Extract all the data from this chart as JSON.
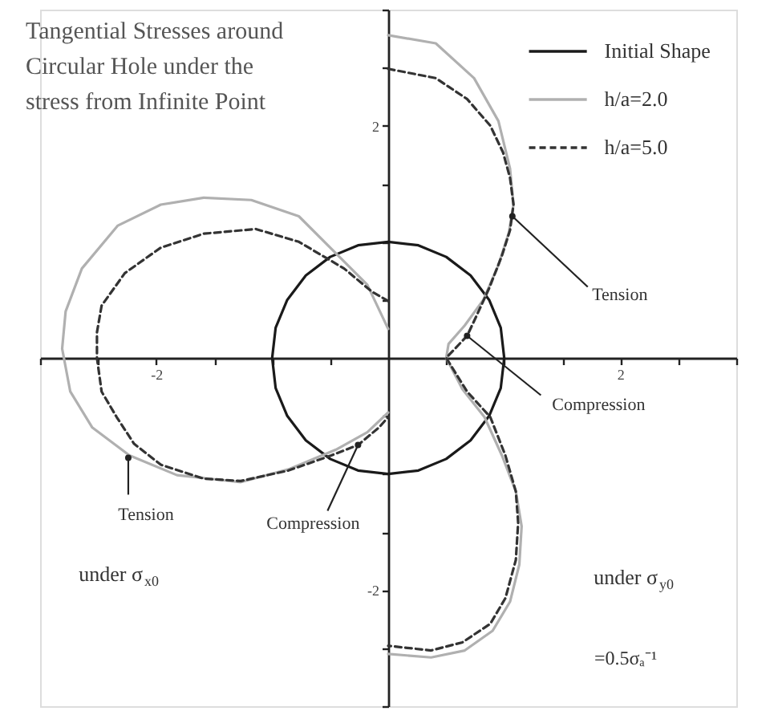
{
  "chart_data": {
    "type": "line",
    "title": "Tangential Stresses around Circular Hole under the stress from Infinite Point",
    "xlim": [
      -3,
      3
    ],
    "ylim": [
      -3,
      3
    ],
    "xticks": [
      {
        "value": -3,
        "label": null
      },
      {
        "value": -2.5,
        "label": null
      },
      -2,
      {
        "value": -1.5,
        "label": null
      },
      {
        "value": -1,
        "label": null
      },
      {
        "value": -0.5,
        "label": null
      },
      {
        "value": 0.5,
        "label": null
      },
      {
        "value": 1,
        "label": null
      },
      {
        "value": 1.5,
        "label": null
      },
      2,
      {
        "value": 2.5,
        "label": null
      },
      {
        "value": 3,
        "label": null
      }
    ],
    "yticks": [
      {
        "value": -3,
        "label": null
      },
      {
        "value": -2.5,
        "label": null
      },
      -2,
      {
        "value": -1.5,
        "label": null
      },
      {
        "value": -1,
        "label": null
      },
      {
        "value": -0.5,
        "label": null
      },
      {
        "value": 0.5,
        "label": null
      },
      {
        "value": 1,
        "label": null
      },
      {
        "value": 1.5,
        "label": null
      },
      2,
      {
        "value": 2.5,
        "label": null
      },
      {
        "value": 3,
        "label": null
      }
    ],
    "legend": "top right",
    "series": [
      {
        "name": "Initial Shape",
        "color": "#1a1a1a",
        "line_style": "solid",
        "x": [
          1,
          0.97,
          0.87,
          0.71,
          0.5,
          0.26,
          0,
          -0.26,
          -0.5,
          -0.71,
          -0.87,
          -0.97,
          -1,
          -0.97,
          -0.87,
          -0.71,
          -0.5,
          -0.26,
          0,
          0.26,
          0.5,
          0.71,
          0.87,
          0.97,
          1,
          0.97
        ],
        "values": [
          0,
          0.26,
          0.5,
          0.71,
          0.87,
          0.97,
          1,
          0.97,
          0.87,
          0.71,
          0.5,
          0.26,
          0,
          -0.26,
          -0.5,
          -0.71,
          -0.87,
          -0.97,
          -1,
          -0.97,
          -0.87,
          -0.71,
          -0.5,
          -0.26,
          0,
          0.26
        ]
      },
      {
        "name": "h/a=2.0",
        "color": "#b0b0b0",
        "line_style": "solid",
        "x": [
          0,
          0.41,
          0.74,
          0.95,
          1.05,
          1.08,
          1.04,
          0.95,
          0.82,
          0.66,
          0.52,
          0.5,
          0.64,
          0.83,
          0.98,
          1.1,
          1.15,
          1.13,
          1.05,
          0.9,
          0.66,
          0.37,
          0,
          null,
          0,
          -0.18,
          -0.47,
          -0.77,
          -1.18,
          -1.59,
          -1.96,
          -2.33,
          -2.64,
          -2.78,
          -2.81,
          -2.74,
          -2.55,
          -2.23,
          -1.82,
          -1.27,
          -0.86,
          -0.45,
          -0.18,
          0
        ],
        "values": [
          2.78,
          2.71,
          2.41,
          2.04,
          1.63,
          1.32,
          1.08,
          0.8,
          0.5,
          0.28,
          0.12,
          0,
          -0.27,
          -0.51,
          -0.84,
          -1.15,
          -1.45,
          -1.78,
          -2.1,
          -2.35,
          -2.52,
          -2.58,
          -2.55,
          null,
          0.25,
          0.63,
          0.92,
          1.22,
          1.36,
          1.38,
          1.32,
          1.14,
          0.77,
          0.4,
          0.08,
          -0.29,
          -0.6,
          -0.84,
          -1.01,
          -1.07,
          -0.96,
          -0.79,
          -0.64,
          -0.47
        ]
      },
      {
        "name": "h/a=5.0",
        "color": "#333333",
        "line_style": "dashed",
        "x": [
          0,
          0.41,
          0.68,
          0.88,
          0.99,
          1.05,
          1.08,
          1.05,
          0.98,
          0.87,
          0.76,
          0.68,
          0.5,
          0.68,
          0.88,
          1.01,
          1.1,
          1.12,
          1.1,
          1.01,
          0.88,
          0.64,
          0.37,
          0,
          null,
          0,
          -0.14,
          -0.38,
          -0.77,
          -1.14,
          -1.59,
          -1.96,
          -2.27,
          -2.47,
          -2.51,
          -2.51,
          -2.47,
          -2.34,
          -2.19,
          -1.96,
          -1.59,
          -1.27,
          -0.86,
          -0.49,
          -0.26,
          -0.08,
          0
        ],
        "values": [
          2.49,
          2.41,
          2.23,
          2,
          1.77,
          1.55,
          1.32,
          1.1,
          0.88,
          0.6,
          0.36,
          0.19,
          0,
          -0.29,
          -0.51,
          -0.84,
          -1.15,
          -1.42,
          -1.74,
          -2.07,
          -2.29,
          -2.45,
          -2.52,
          -2.48,
          null,
          0.49,
          0.57,
          0.77,
          1,
          1.11,
          1.07,
          0.95,
          0.73,
          0.45,
          0.22,
          0,
          -0.29,
          -0.51,
          -0.74,
          -0.92,
          -1.04,
          -1.06,
          -0.97,
          -0.84,
          -0.75,
          -0.6,
          -0.51
        ]
      }
    ],
    "annotations": [
      {
        "text": "Tension",
        "x": 1.07,
        "y": 1.22
      },
      {
        "text": "Compression",
        "x": 0.68,
        "y": 0.19
      },
      {
        "text": "Tension",
        "x": -2.24,
        "y": -0.86
      },
      {
        "text": "Compression",
        "x": -0.26,
        "y": -0.75
      },
      "under σ$_{x0}$",
      "under σ$_{y0}$",
      "=0.5σₐ⁻¹"
    ]
  }
}
